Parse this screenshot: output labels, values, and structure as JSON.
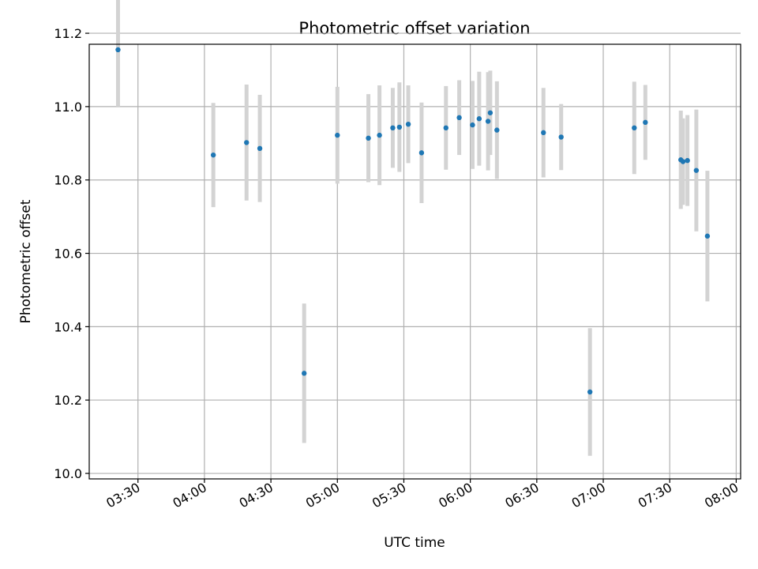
{
  "chart_data": {
    "type": "scatter",
    "title": "Photometric offset variation",
    "xlabel": "UTC time",
    "ylabel": "Photometric offset",
    "x_unit": "UTC time (HH:MM)",
    "xlim": [
      "03:08",
      "08:02"
    ],
    "ylim": [
      9.985,
      11.17
    ],
    "grid": true,
    "x_ticks": [
      "03:30",
      "04:00",
      "04:30",
      "05:00",
      "05:30",
      "06:00",
      "06:30",
      "07:00",
      "07:30",
      "08:00"
    ],
    "y_ticks": [
      10.0,
      10.2,
      10.4,
      10.6,
      10.8,
      11.0,
      11.2
    ],
    "y_tick_labels": [
      "10.0",
      "10.2",
      "10.4",
      "10.6",
      "10.8",
      "11.0",
      "11.2"
    ],
    "marker_color": "#1f77b4",
    "errorbar_color": "#d3d3d3",
    "series": [
      {
        "points": [
          {
            "x": "03:21",
            "y": 11.155,
            "err": 0.155
          },
          {
            "x": "04:04",
            "y": 10.868,
            "err": 0.142
          },
          {
            "x": "04:19",
            "y": 10.902,
            "err": 0.158
          },
          {
            "x": "04:25",
            "y": 10.886,
            "err": 0.146
          },
          {
            "x": "04:45",
            "y": 10.273,
            "err": 0.19
          },
          {
            "x": "05:00",
            "y": 10.922,
            "err": 0.132
          },
          {
            "x": "05:14",
            "y": 10.914,
            "err": 0.12
          },
          {
            "x": "05:19",
            "y": 10.922,
            "err": 0.136
          },
          {
            "x": "05:25",
            "y": 10.942,
            "err": 0.109
          },
          {
            "x": "05:28",
            "y": 10.944,
            "err": 0.122
          },
          {
            "x": "05:32",
            "y": 10.952,
            "err": 0.106
          },
          {
            "x": "05:38",
            "y": 10.874,
            "err": 0.137
          },
          {
            "x": "05:49",
            "y": 10.942,
            "err": 0.114
          },
          {
            "x": "05:55",
            "y": 10.97,
            "err": 0.102
          },
          {
            "x": "06:01",
            "y": 10.95,
            "err": 0.12
          },
          {
            "x": "06:04",
            "y": 10.967,
            "err": 0.128
          },
          {
            "x": "06:08",
            "y": 10.96,
            "err": 0.134
          },
          {
            "x": "06:09",
            "y": 10.983,
            "err": 0.115
          },
          {
            "x": "06:12",
            "y": 10.936,
            "err": 0.133
          },
          {
            "x": "06:33",
            "y": 10.929,
            "err": 0.122
          },
          {
            "x": "06:41",
            "y": 10.917,
            "err": 0.09
          },
          {
            "x": "06:54",
            "y": 10.222,
            "err": 0.174
          },
          {
            "x": "07:14",
            "y": 10.942,
            "err": 0.126
          },
          {
            "x": "07:19",
            "y": 10.957,
            "err": 0.102
          },
          {
            "x": "07:35",
            "y": 10.855,
            "err": 0.134
          },
          {
            "x": "07:36",
            "y": 10.85,
            "err": 0.118
          },
          {
            "x": "07:38",
            "y": 10.853,
            "err": 0.124
          },
          {
            "x": "07:42",
            "y": 10.826,
            "err": 0.166
          },
          {
            "x": "07:47",
            "y": 10.647,
            "err": 0.178
          }
        ]
      }
    ]
  }
}
